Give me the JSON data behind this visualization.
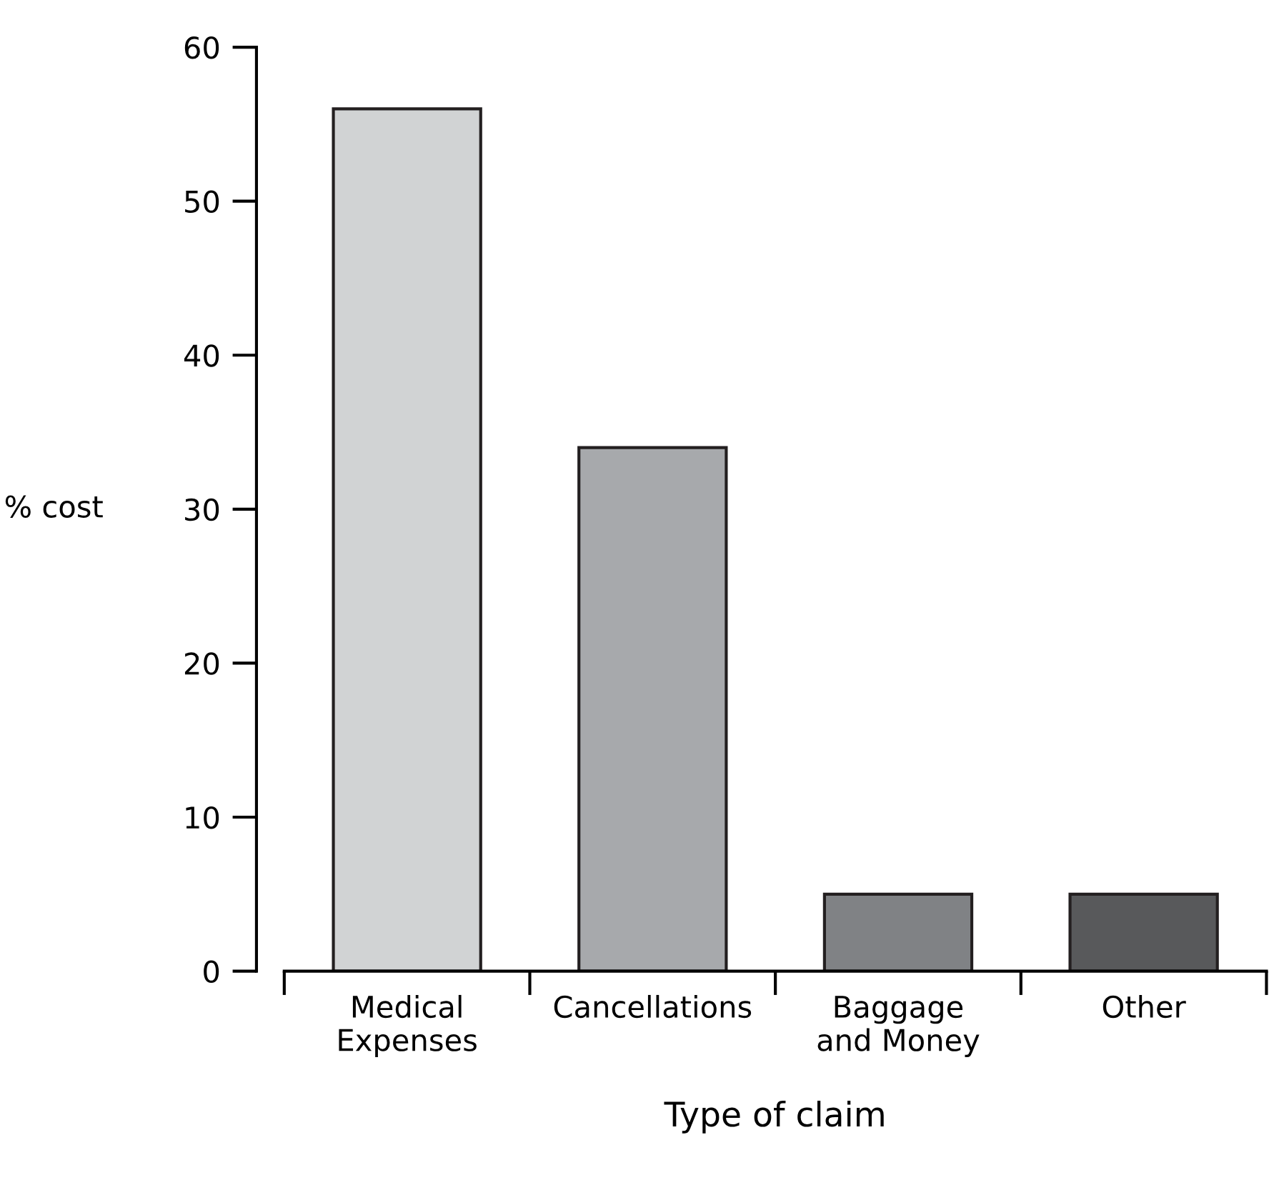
{
  "chart_data": {
    "type": "bar",
    "xlabel": "Type of claim",
    "ylabel": "% cost",
    "categories": [
      "Medical\nExpenses",
      "Cancellations",
      "Baggage\nand Money",
      "Other"
    ],
    "values": [
      56,
      34,
      5,
      5
    ],
    "colors": [
      "#d1d3d4",
      "#a7a9ac",
      "#808285",
      "#58595b"
    ],
    "ylim": [
      0,
      60
    ],
    "yticks": [
      0,
      10,
      20,
      30,
      40,
      50,
      60
    ],
    "grid": false,
    "legend": false
  }
}
